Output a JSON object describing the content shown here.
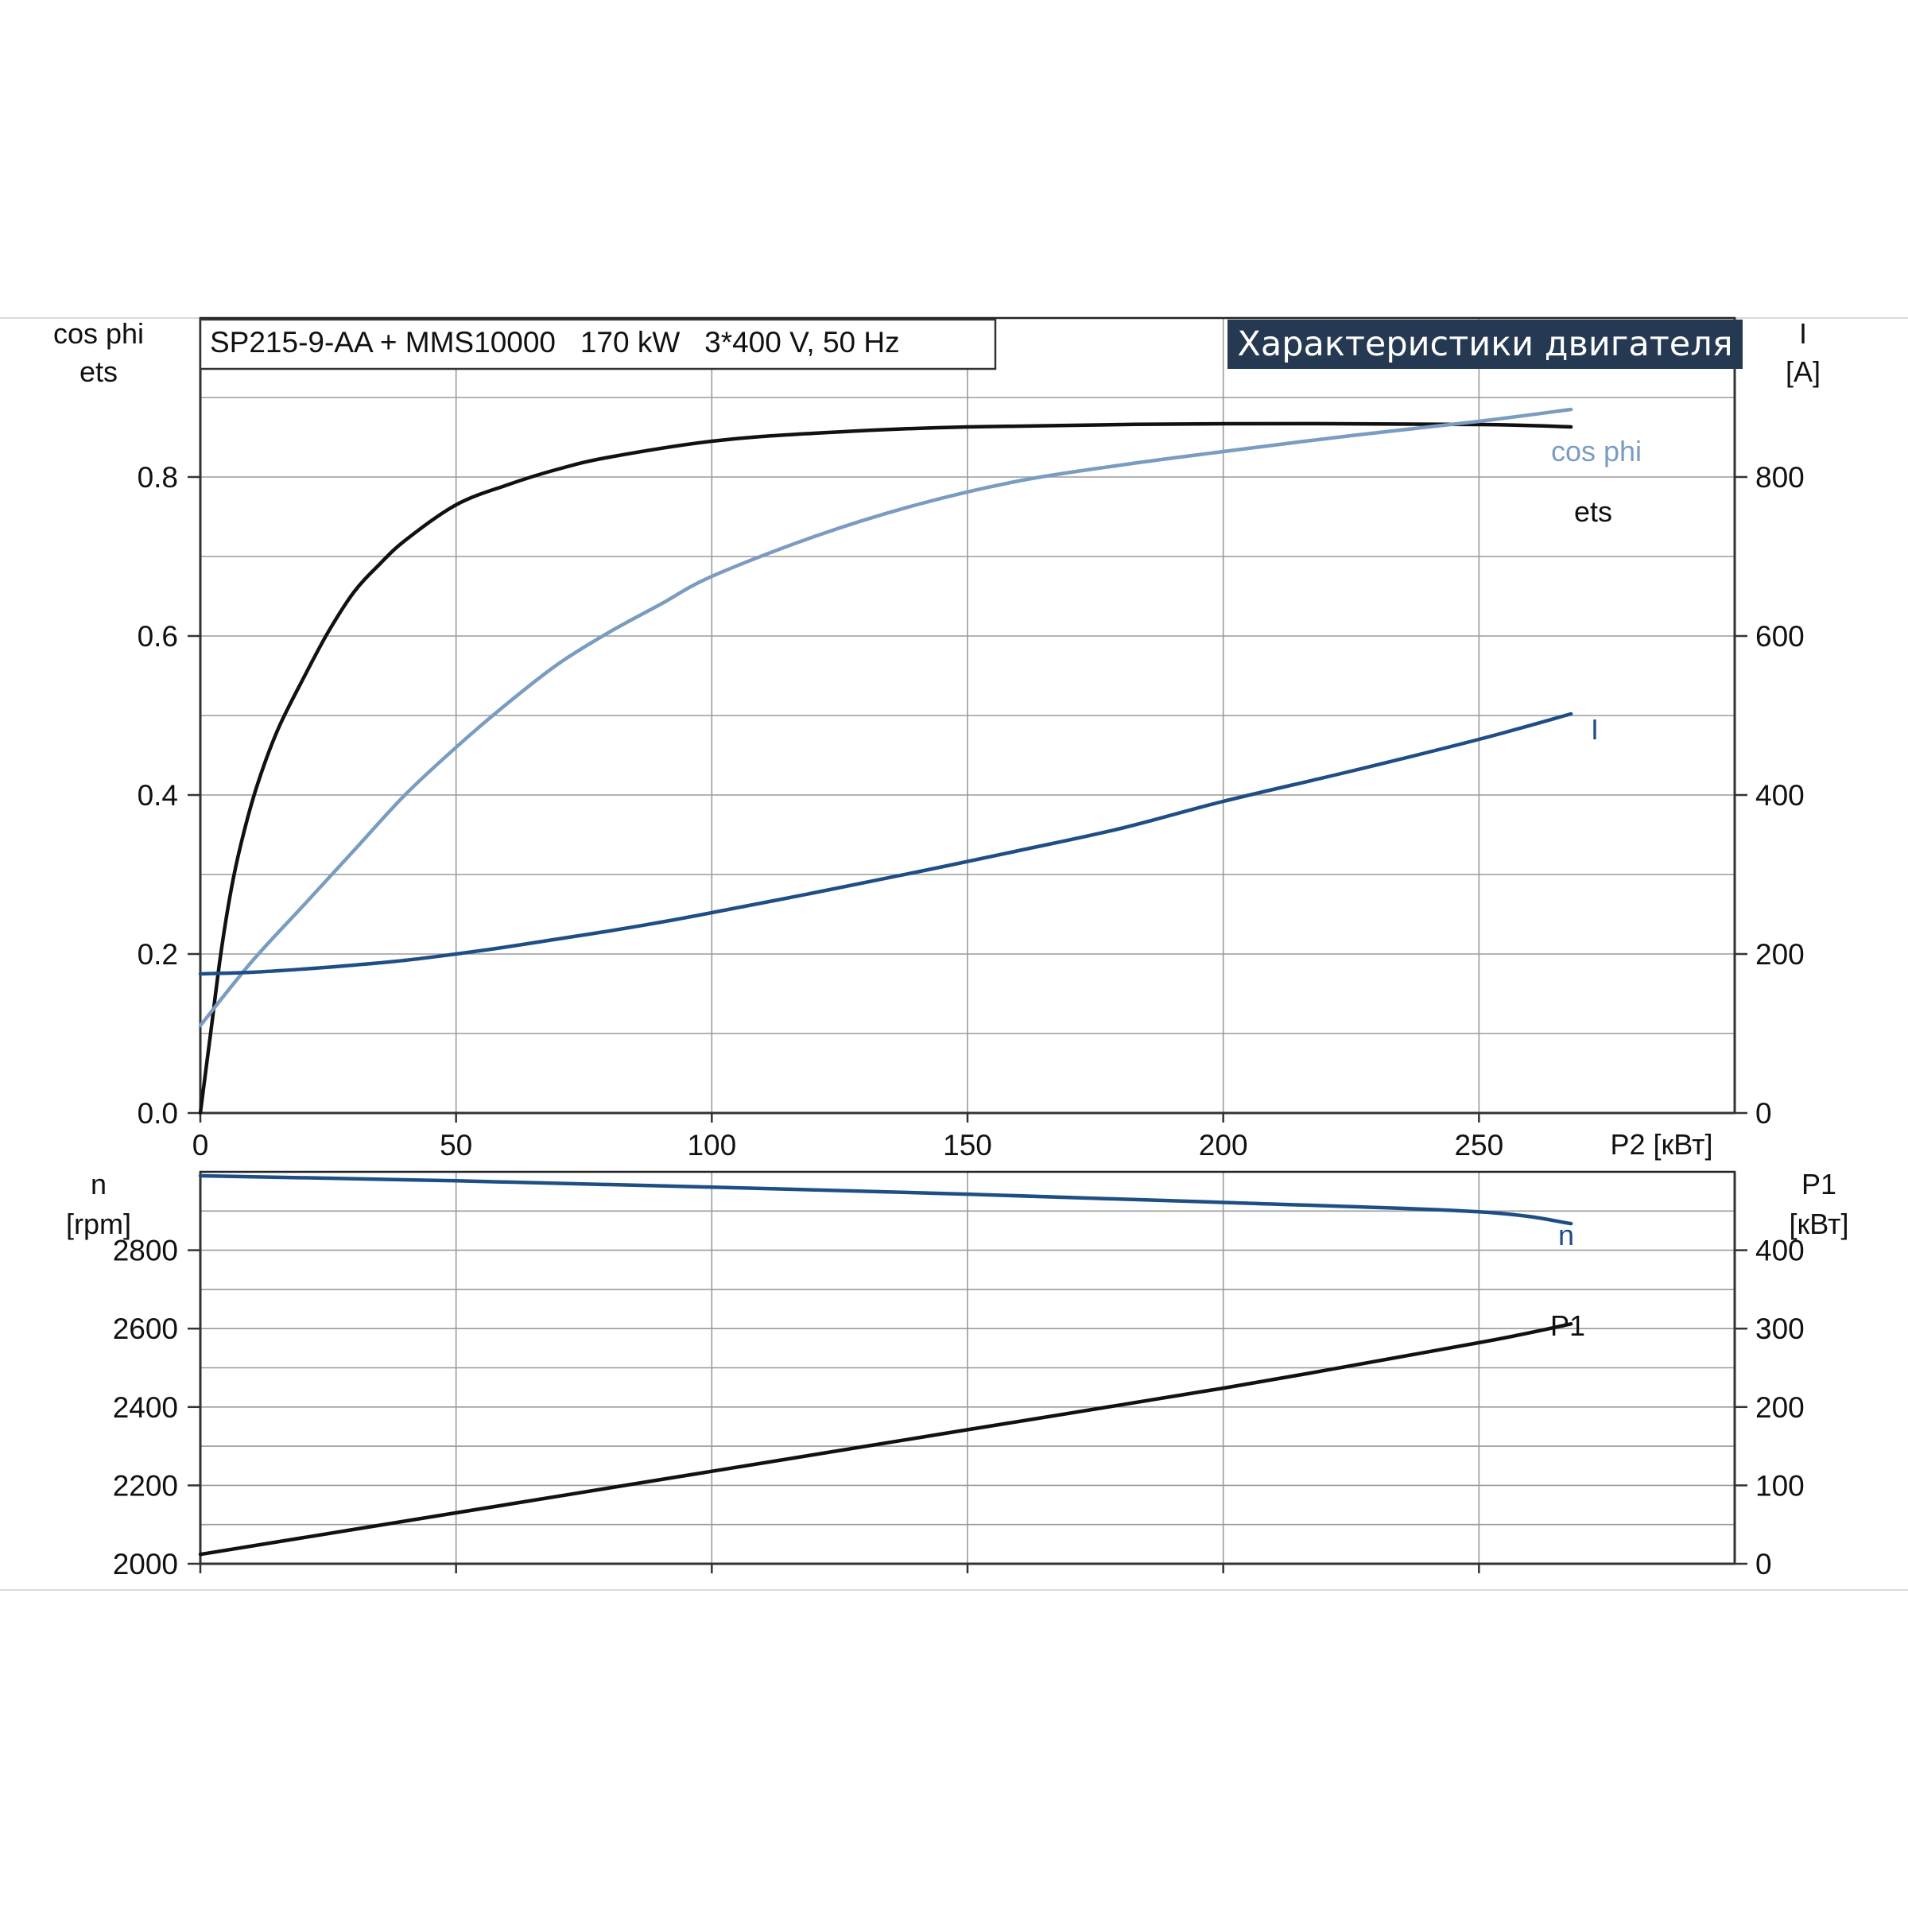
{
  "header": {
    "model": "SP215-9-AA + MMS10000   170 kW   3*400 V, 50 Hz",
    "badge": "Характеристики двигателя"
  },
  "colors": {
    "ets": "#111111",
    "cos_phi": "#7a9cc0",
    "I": "#1f4e85",
    "n": "#1f4e85",
    "P1": "#111111",
    "badge_bg": "#253a52"
  },
  "chart_data": [
    {
      "type": "line",
      "x_axis": {
        "label": "P2 [кВт]",
        "range": [
          0,
          300
        ],
        "ticks": [
          0,
          50,
          100,
          150,
          200,
          250
        ]
      },
      "y_left": {
        "label_lines": [
          "cos phi",
          "ets"
        ],
        "range": [
          0,
          1.0
        ],
        "ticks": [
          0.0,
          0.2,
          0.4,
          0.6,
          0.8
        ],
        "tick_labels": [
          "0.0",
          "0.2",
          "0.4",
          "0.6",
          "0.8"
        ]
      },
      "y_right": {
        "label_lines": [
          "I",
          "[A]"
        ],
        "range": [
          0,
          1000
        ],
        "ticks": [
          0,
          200,
          400,
          600,
          800
        ]
      },
      "grid": true,
      "series": [
        {
          "name": "ets",
          "axis": "left",
          "color": "#111111",
          "x": [
            0,
            2,
            4,
            6,
            8,
            11,
            15,
            20,
            25,
            30,
            35,
            40,
            50,
            60,
            70,
            80,
            100,
            120,
            150,
            200,
            250,
            268
          ],
          "y": [
            0.0,
            0.1,
            0.2,
            0.28,
            0.34,
            0.41,
            0.48,
            0.545,
            0.605,
            0.655,
            0.69,
            0.72,
            0.765,
            0.79,
            0.81,
            0.825,
            0.845,
            0.855,
            0.863,
            0.867,
            0.866,
            0.863
          ]
        },
        {
          "name": "cos phi",
          "axis": "left",
          "color": "#7a9cc0",
          "x": [
            0,
            10,
            20,
            30,
            40,
            50,
            60,
            70,
            80,
            90,
            100,
            120,
            140,
            160,
            180,
            200,
            225,
            250,
            268
          ],
          "y": [
            0.11,
            0.19,
            0.26,
            0.33,
            0.4,
            0.46,
            0.515,
            0.565,
            0.605,
            0.64,
            0.675,
            0.725,
            0.765,
            0.795,
            0.815,
            0.832,
            0.852,
            0.87,
            0.885
          ]
        },
        {
          "name": "I",
          "axis": "right",
          "color": "#1f4e85",
          "x": [
            0,
            10,
            20,
            30,
            40,
            50,
            60,
            70,
            80,
            90,
            100,
            120,
            140,
            160,
            180,
            200,
            225,
            250,
            268
          ],
          "y": [
            175,
            177,
            181,
            186,
            192,
            200,
            209,
            219,
            229,
            240,
            252,
            277,
            303,
            330,
            358,
            392,
            430,
            470,
            502
          ]
        }
      ]
    },
    {
      "type": "line",
      "x_axis": {
        "label": "",
        "range": [
          0,
          300
        ],
        "ticks": [
          0,
          50,
          100,
          150,
          200,
          250
        ]
      },
      "y_left": {
        "label_lines": [
          "n",
          "[rpm]"
        ],
        "range": [
          2000,
          3000
        ],
        "ticks": [
          2000,
          2200,
          2400,
          2600,
          2800
        ]
      },
      "y_right": {
        "label_lines": [
          "P1",
          "[кВт]"
        ],
        "range": [
          0,
          500
        ],
        "ticks": [
          0,
          100,
          200,
          300,
          400
        ]
      },
      "grid": true,
      "series": [
        {
          "name": "n",
          "axis": "left",
          "color": "#1f4e85",
          "x": [
            0,
            50,
            100,
            150,
            200,
            250,
            268
          ],
          "y": [
            2990,
            2977,
            2961,
            2943,
            2922,
            2898,
            2868
          ]
        },
        {
          "name": "P1",
          "axis": "right",
          "color": "#111111",
          "x": [
            0,
            50,
            100,
            150,
            200,
            250,
            268
          ],
          "y": [
            12,
            65,
            118,
            171,
            224,
            282,
            306
          ]
        }
      ]
    }
  ]
}
